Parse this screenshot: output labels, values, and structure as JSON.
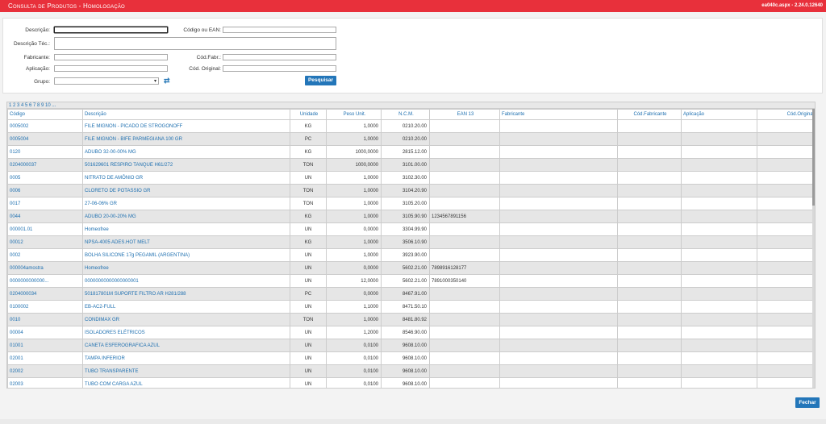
{
  "header": {
    "title": "Consulta de Produtos  - Homologação",
    "version": "ea040c.aspx - 2.24.0.12640"
  },
  "filters": {
    "descricao_label": "Descrição:",
    "codigo_ean_label": "Código ou EAN:",
    "descricao_tec_label": "Descrição Téc.:",
    "fabricante_label": "Fabricante:",
    "cod_fabr_label": "Cód.Fabr.:",
    "aplicacao_label": "Aplicação:",
    "cod_original_label": "Cód. Original:",
    "grupo_label": "Grupo:",
    "search_button": "Pesquisar"
  },
  "pager": "1 2 3 4 5 6 7 8 9 10 ...",
  "columns": [
    "Código",
    "Descrição",
    "Unidade",
    "Peso Unit.",
    "N.C.M.",
    "EAN 13",
    "Fabricante",
    "Cód.Fabricante",
    "Aplicação",
    "Cód.Original"
  ],
  "rows": [
    [
      "0005002",
      "FILE MIGNON - PICADO DE STROGONOFF",
      "KG",
      "1,0000",
      "0210.20.00",
      "",
      "",
      "",
      "",
      ""
    ],
    [
      "0005004",
      "FILE MIGNON - BIFE PARMEGIANA 100 GR",
      "PC",
      "1,0000",
      "0210.20.00",
      "",
      "",
      "",
      "",
      ""
    ],
    [
      "0120",
      "ADUBO 32-00-00% MG",
      "KG",
      "1000,0000",
      "2815.12.00",
      "",
      "",
      "",
      "",
      ""
    ],
    [
      "0204000037",
      "501629601 RESPIRO TANQUE H61/272",
      "TON",
      "1000,0000",
      "3101.00.00",
      "",
      "",
      "",
      "",
      ""
    ],
    [
      "0005",
      "NITRATO DE AMÔNIO GR",
      "UN",
      "1,0000",
      "3102.30.00",
      "",
      "",
      "",
      "",
      ""
    ],
    [
      "0006",
      "CLORETO DE POTASSIO GR",
      "TON",
      "1,0000",
      "3104.20.90",
      "",
      "",
      "",
      "",
      ""
    ],
    [
      "0017",
      "27-06-06% GR",
      "TON",
      "1,0000",
      "3105.20.00",
      "",
      "",
      "",
      "",
      ""
    ],
    [
      "0044",
      "ADUBO 20-00-20% MG",
      "KG",
      "1,0000",
      "3105.90.90",
      "1234567891156",
      "",
      "",
      "",
      ""
    ],
    [
      "000001.01",
      "Homeofree",
      "UN",
      "0,0000",
      "3304.99.90",
      "",
      "",
      "",
      "",
      ""
    ],
    [
      "00012",
      "NPSA-4005 ADES.HOT MELT",
      "KG",
      "1,0000",
      "3506.10.90",
      "",
      "",
      "",
      "",
      ""
    ],
    [
      "0002",
      "BOLHA SILICONE 17g PEGAMIL (ARGENTINA)",
      "UN",
      "1,0000",
      "3923.90.00",
      "",
      "",
      "",
      "",
      ""
    ],
    [
      "000004amostra",
      "Homeofree",
      "UN",
      "0,0000",
      "5602.21.00",
      "7898916128177",
      "",
      "",
      "",
      ""
    ],
    [
      "0000000000000...",
      "00000000000000000001",
      "UN",
      "12,0000",
      "5602.21.00",
      "7891000350140",
      "",
      "",
      "",
      ""
    ],
    [
      "0204000034",
      "501817801M SUPORTE FILTRO AR H281/288",
      "PC",
      "0,0000",
      "8467.91.00",
      "",
      "",
      "",
      "",
      ""
    ],
    [
      "0100002",
      "EB-AC2-FULL",
      "UN",
      "1,1000",
      "8471.50.10",
      "",
      "",
      "",
      "",
      ""
    ],
    [
      "0010",
      "CONDIMAX GR",
      "TON",
      "1,0000",
      "8481.80.92",
      "",
      "",
      "",
      "",
      ""
    ],
    [
      "00004",
      "ISOLADORES ELÉTRICOS",
      "UN",
      "1,2000",
      "8546.90.00",
      "",
      "",
      "",
      "",
      ""
    ],
    [
      "01001",
      "CANETA ESFEROGRAFICA AZUL",
      "UN",
      "0,0100",
      "9608.10.00",
      "",
      "",
      "",
      "",
      ""
    ],
    [
      "02001",
      "TAMPA INFERIOR",
      "UN",
      "0,0100",
      "9608.10.00",
      "",
      "",
      "",
      "",
      ""
    ],
    [
      "02002",
      "TUBO TRANSPARENTE",
      "UN",
      "0,0100",
      "9608.10.00",
      "",
      "",
      "",
      "",
      ""
    ],
    [
      "02003",
      "TUBO COM CARGA AZUL",
      "UN",
      "0,0100",
      "9608.10.00",
      "",
      "",
      "",
      "",
      ""
    ]
  ],
  "footer": {
    "close_button": "Fechar"
  },
  "colors": {
    "header": "#e8303b",
    "accent": "#2376b9"
  }
}
